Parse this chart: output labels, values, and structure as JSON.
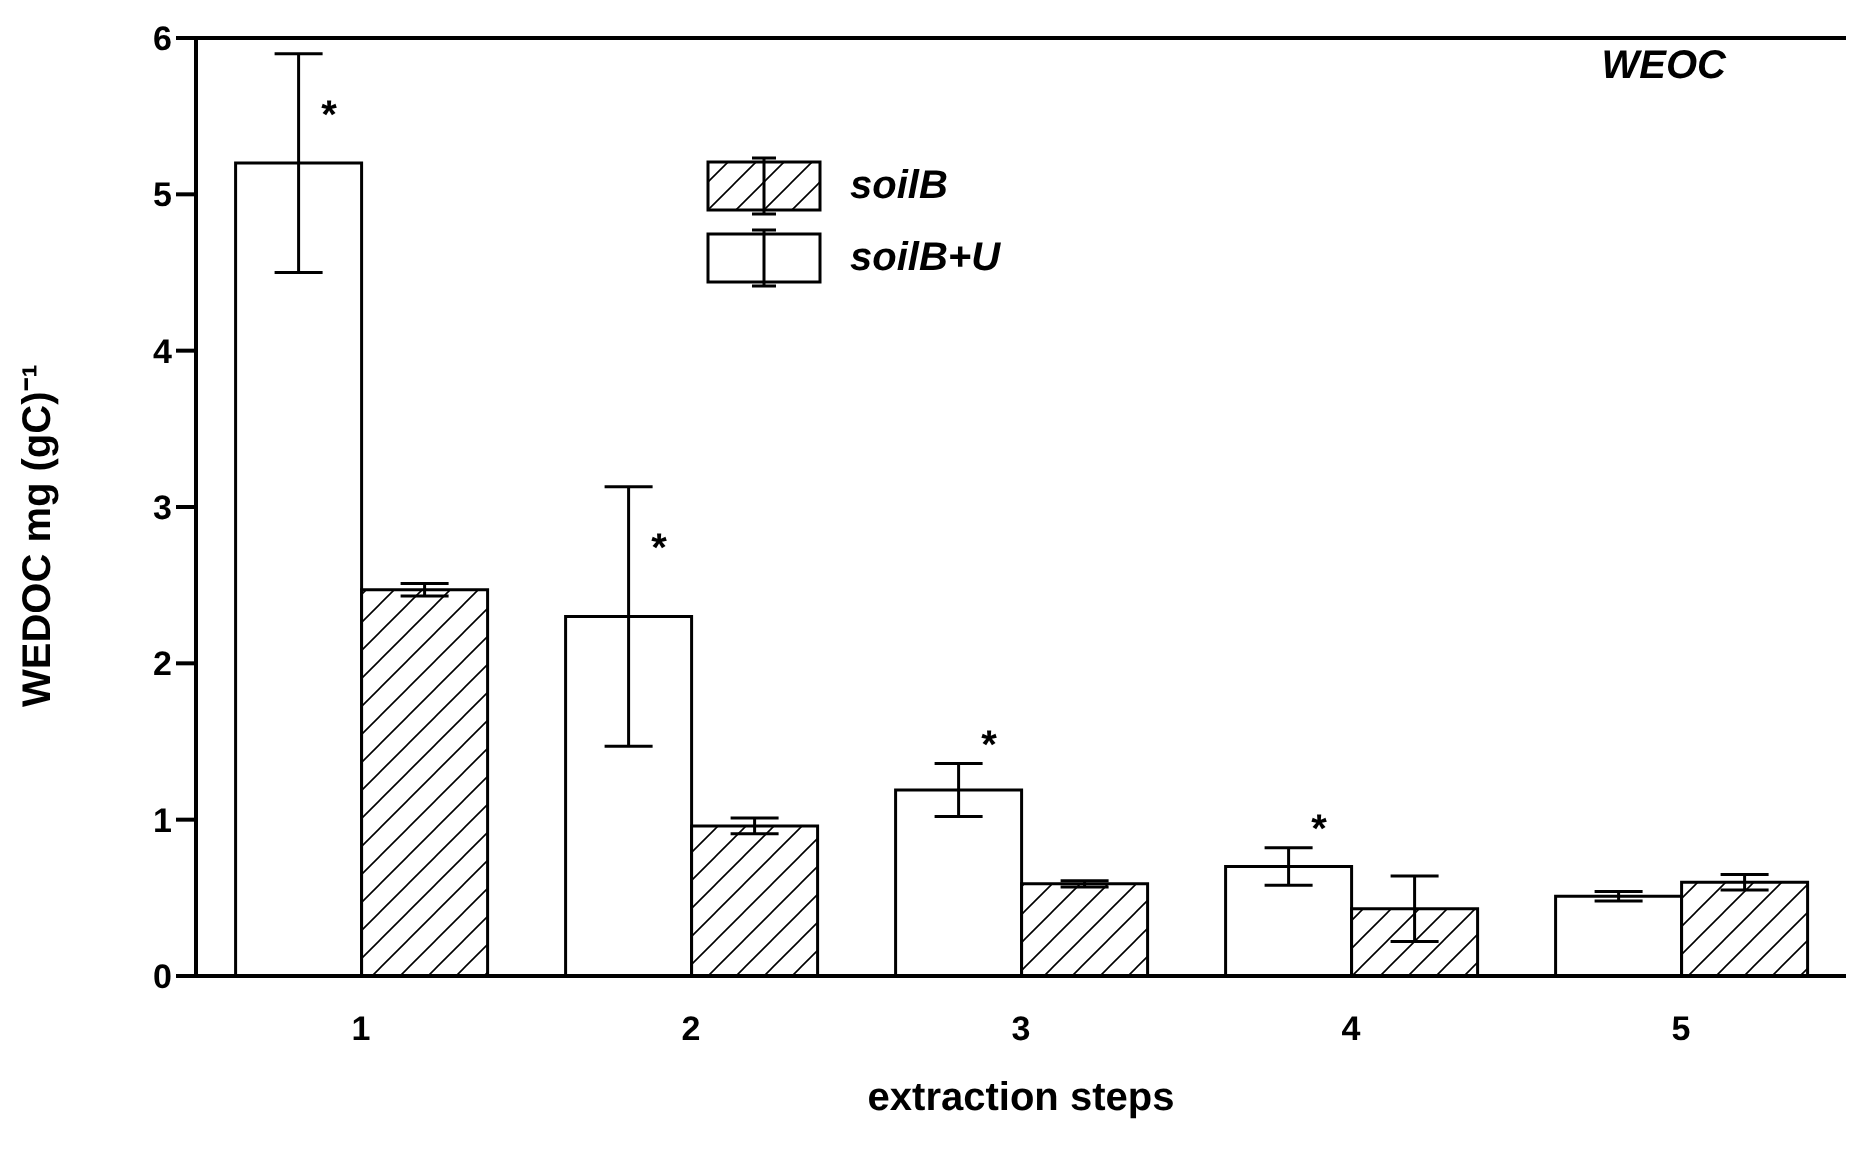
{
  "chart_data": {
    "type": "bar",
    "title": "WEOC",
    "xlabel": "extraction steps",
    "ylabel": "WEDOC mg (gC)⁻¹",
    "categories": [
      "1",
      "2",
      "3",
      "4",
      "5"
    ],
    "series": [
      {
        "name": "soilB+U",
        "color": "#ffffff",
        "values": [
          5.2,
          2.3,
          1.19,
          0.7,
          0.51
        ],
        "errors": [
          0.7,
          0.83,
          0.17,
          0.12,
          0.03
        ]
      },
      {
        "name": "soilB",
        "color": "#000000",
        "values": [
          2.47,
          0.96,
          0.59,
          0.43,
          0.6
        ],
        "errors": [
          0.04,
          0.05,
          0.02,
          0.21,
          0.05
        ]
      }
    ],
    "ylim": [
      0,
      6
    ],
    "yticks": [
      0,
      1,
      2,
      3,
      4,
      5,
      6
    ],
    "grid": false,
    "legend": "top",
    "annotations": [
      "*",
      "*",
      "*",
      "*"
    ]
  }
}
